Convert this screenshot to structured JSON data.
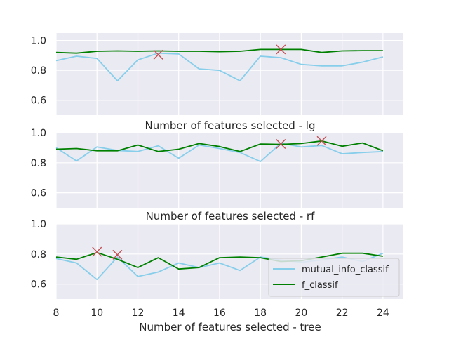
{
  "chart_data": [
    {
      "type": "line",
      "xlabel": "",
      "x": [
        8,
        9,
        10,
        11,
        12,
        13,
        14,
        15,
        16,
        17,
        18,
        19,
        20,
        21,
        22,
        23,
        24
      ],
      "xlim": [
        8,
        25
      ],
      "ylim": [
        0.5,
        1.05
      ],
      "yticks": [
        0.6,
        0.8,
        1.0
      ],
      "ytick_labels": [
        "0.6",
        "0.8",
        "1.0"
      ],
      "grid": true,
      "series": [
        {
          "name": "mutual_info_classif",
          "color": "#87ceeb",
          "values": [
            0.865,
            0.895,
            0.88,
            0.73,
            0.87,
            0.915,
            0.91,
            0.81,
            0.8,
            0.73,
            0.895,
            0.885,
            0.84,
            0.83,
            0.83,
            0.855,
            0.89
          ]
        },
        {
          "name": "f_classif",
          "color": "#008000",
          "values": [
            0.92,
            0.915,
            0.928,
            0.93,
            0.928,
            0.93,
            0.928,
            0.928,
            0.925,
            0.928,
            0.94,
            0.94,
            0.94,
            0.92,
            0.93,
            0.932,
            0.932
          ]
        }
      ],
      "markers": [
        {
          "x": 13,
          "y": 0.905
        },
        {
          "x": 19,
          "y": 0.94
        }
      ],
      "marker_color": "#c44e52"
    },
    {
      "type": "line",
      "xlabel": "Number of features selected - lg",
      "x": [
        8,
        9,
        10,
        11,
        12,
        13,
        14,
        15,
        16,
        17,
        18,
        19,
        20,
        21,
        22,
        23,
        24
      ],
      "xlim": [
        8,
        25
      ],
      "ylim": [
        0.5,
        1.0
      ],
      "yticks": [
        0.6,
        0.8,
        1.0
      ],
      "ytick_labels": [
        "0.6",
        "0.8",
        "1.0"
      ],
      "grid": true,
      "series": [
        {
          "name": "mutual_info_classif",
          "color": "#87ceeb",
          "values": [
            0.9,
            0.812,
            0.905,
            0.882,
            0.875,
            0.913,
            0.83,
            0.918,
            0.895,
            0.868,
            0.808,
            0.93,
            0.905,
            0.915,
            0.86,
            0.868,
            0.875
          ]
        },
        {
          "name": "f_classif",
          "color": "#008000",
          "values": [
            0.89,
            0.895,
            0.88,
            0.88,
            0.918,
            0.875,
            0.89,
            0.928,
            0.908,
            0.875,
            0.925,
            0.922,
            0.928,
            0.945,
            0.91,
            0.932,
            0.88
          ]
        }
      ],
      "markers": [
        {
          "x": 19,
          "y": 0.925
        },
        {
          "x": 21,
          "y": 0.945
        }
      ],
      "marker_color": "#c44e52"
    },
    {
      "type": "line",
      "xlabel": "Number of features selected - rf",
      "x": [
        8,
        9,
        10,
        11,
        12,
        13,
        14,
        15,
        16,
        17,
        18,
        19,
        20,
        21,
        22,
        23,
        24
      ],
      "xlim": [
        8,
        25
      ],
      "ylim": [
        0.5,
        1.0
      ],
      "yticks": [
        0.6,
        0.8,
        1.0
      ],
      "ytick_labels": [
        "0.6",
        "0.8",
        "1.0"
      ],
      "grid": true,
      "series": [
        {
          "name": "mutual_info_classif",
          "color": "#87ceeb",
          "values": [
            0.77,
            0.74,
            0.63,
            0.78,
            0.65,
            0.68,
            0.74,
            0.71,
            0.74,
            0.69,
            0.78,
            0.76,
            0.745,
            0.76,
            0.78,
            0.75,
            0.805
          ]
        },
        {
          "name": "f_classif",
          "color": "#008000",
          "values": [
            0.78,
            0.765,
            0.81,
            0.765,
            0.71,
            0.775,
            0.7,
            0.71,
            0.775,
            0.78,
            0.775,
            0.75,
            0.755,
            0.78,
            0.805,
            0.805,
            0.785
          ]
        }
      ],
      "markers": [
        {
          "x": 10,
          "y": 0.815
        },
        {
          "x": 11,
          "y": 0.795
        }
      ],
      "marker_color": "#c44e52"
    }
  ],
  "shared_xlabel": "Number of features selected - tree",
  "xticks": [
    8,
    10,
    12,
    14,
    16,
    18,
    20,
    22,
    24
  ],
  "xtick_labels": [
    "8",
    "10",
    "12",
    "14",
    "16",
    "18",
    "20",
    "22",
    "24"
  ],
  "legend": {
    "placement": "lower-right of bottom panel",
    "entries": [
      {
        "label": "mutual_info_classif",
        "color": "#87ceeb"
      },
      {
        "label": "f_classif",
        "color": "#008000"
      }
    ]
  },
  "colors": {
    "panel_bg": "#eaeaf2",
    "grid": "#ffffff",
    "text": "#262626"
  }
}
